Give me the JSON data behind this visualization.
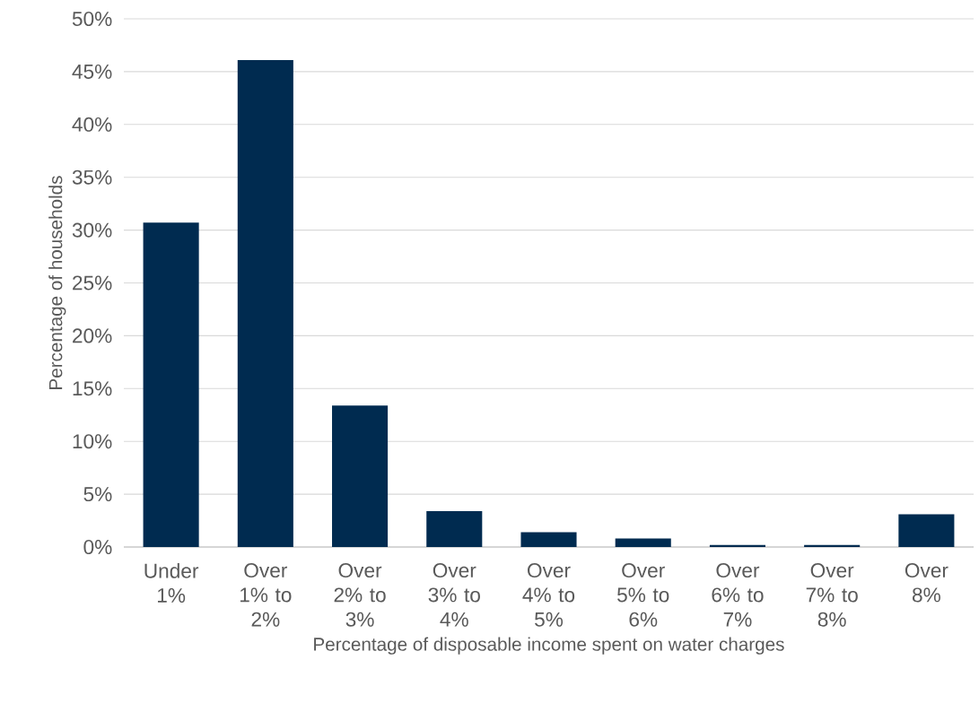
{
  "chart_data": {
    "type": "bar",
    "xlabel": "Percentage of disposable income spent on water charges",
    "ylabel": "Percentage of households",
    "categories": [
      "Under 1%",
      "Over 1% to 2%",
      "Over 2% to 3%",
      "Over 3% to 4%",
      "Over 4% to 5%",
      "Over 5% to 6%",
      "Over 6% to 7%",
      "Over 7% to 8%",
      "Over 8%"
    ],
    "values": [
      30.7,
      46.1,
      13.4,
      3.4,
      1.4,
      0.8,
      0.2,
      0.2,
      3.1
    ],
    "color": "#002b50",
    "ylim": [
      0,
      50
    ],
    "yticks": [
      {
        "value": 0,
        "label": "0%"
      },
      {
        "value": 5,
        "label": "5%"
      },
      {
        "value": 10,
        "label": "10%"
      },
      {
        "value": 15,
        "label": "15%"
      },
      {
        "value": 20,
        "label": "20%"
      },
      {
        "value": 25,
        "label": "25%"
      },
      {
        "value": 30,
        "label": "30%"
      },
      {
        "value": 35,
        "label": "35%"
      },
      {
        "value": 40,
        "label": "40%"
      },
      {
        "value": 45,
        "label": "45%"
      },
      {
        "value": 50,
        "label": "50%"
      }
    ],
    "grid": "y"
  }
}
